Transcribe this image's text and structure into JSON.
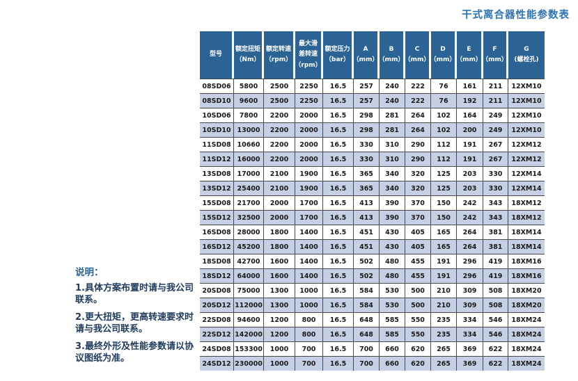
{
  "title": "干式离合器性能参数表",
  "colors": {
    "header_bg": "#2b6394",
    "shaded_row": "#c5d0e4",
    "row_border": "#474747",
    "title_blue": "#2e74b5",
    "notes_text": "#1e3a5c"
  },
  "table": {
    "columns": [
      {
        "label": "型号",
        "unit": ""
      },
      {
        "label": "额定扭矩",
        "unit": "（Nm）"
      },
      {
        "label": "额定转速",
        "unit": "（rpm）"
      },
      {
        "label": "最大滑差转速",
        "unit": "（rpm）"
      },
      {
        "label": "额定压力",
        "unit": "（bar）"
      },
      {
        "label": "A",
        "unit": "（mm）"
      },
      {
        "label": "B",
        "unit": "（mm）"
      },
      {
        "label": "C",
        "unit": "（mm）"
      },
      {
        "label": "D",
        "unit": "（mm）"
      },
      {
        "label": "E",
        "unit": "（mm）"
      },
      {
        "label": "F",
        "unit": "（mm）"
      },
      {
        "label": "G",
        "unit": "(螺栓孔)"
      }
    ],
    "rows": [
      [
        "08SD06",
        "5800",
        "2500",
        "2250",
        "16.5",
        "257",
        "240",
        "222",
        "76",
        "161",
        "211",
        "12XM10"
      ],
      [
        "08SD10",
        "9600",
        "2500",
        "2250",
        "16.5",
        "257",
        "240",
        "222",
        "76",
        "192",
        "211",
        "12XM10"
      ],
      [
        "10SD06",
        "7800",
        "2200",
        "2000",
        "16.5",
        "298",
        "281",
        "264",
        "102",
        "164",
        "249",
        "12XM10"
      ],
      [
        "10SD10",
        "13000",
        "2200",
        "2000",
        "16.5",
        "298",
        "281",
        "264",
        "102",
        "200",
        "249",
        "12XM10"
      ],
      [
        "11SD08",
        "10660",
        "2200",
        "2000",
        "16.5",
        "330",
        "310",
        "290",
        "112",
        "191",
        "267",
        "12XM12"
      ],
      [
        "11SD12",
        "16000",
        "2200",
        "2000",
        "16.5",
        "330",
        "310",
        "290",
        "112",
        "191",
        "267",
        "12XM12"
      ],
      [
        "13SD08",
        "17000",
        "2100",
        "1900",
        "16.5",
        "365",
        "340",
        "320",
        "125",
        "203",
        "330",
        "12XM14"
      ],
      [
        "13SD12",
        "25400",
        "2100",
        "1900",
        "16.5",
        "365",
        "340",
        "320",
        "125",
        "203",
        "330",
        "12XM14"
      ],
      [
        "15SD08",
        "21700",
        "2000",
        "1700",
        "16.5",
        "413",
        "390",
        "370",
        "150",
        "242",
        "343",
        "18XM12"
      ],
      [
        "15SD12",
        "32500",
        "2000",
        "1700",
        "16.5",
        "413",
        "390",
        "370",
        "150",
        "242",
        "343",
        "18XM12"
      ],
      [
        "16SD08",
        "28000",
        "1800",
        "1400",
        "16.5",
        "451",
        "430",
        "405",
        "165",
        "264",
        "381",
        "18XM14"
      ],
      [
        "16SD12",
        "45200",
        "1800",
        "1400",
        "16.5",
        "451",
        "430",
        "405",
        "165",
        "264",
        "381",
        "18XM14"
      ],
      [
        "18SD08",
        "42700",
        "1600",
        "1400",
        "16.5",
        "502",
        "480",
        "455",
        "191",
        "296",
        "419",
        "18XM16"
      ],
      [
        "18SD12",
        "64000",
        "1600",
        "1400",
        "16.5",
        "502",
        "480",
        "455",
        "191",
        "296",
        "419",
        "18XM16"
      ],
      [
        "20SD08",
        "75000",
        "1300",
        "1000",
        "16.5",
        "584",
        "530",
        "500",
        "210",
        "309",
        "508",
        "18XM20"
      ],
      [
        "20SD12",
        "112000",
        "1300",
        "1000",
        "16.5",
        "584",
        "530",
        "500",
        "210",
        "309",
        "508",
        "18XM20"
      ],
      [
        "22SD08",
        "94600",
        "1200",
        "800",
        "16.5",
        "648",
        "585",
        "550",
        "235",
        "334",
        "546",
        "18XM24"
      ],
      [
        "22SD12",
        "142000",
        "1200",
        "800",
        "16.5",
        "648",
        "585",
        "550",
        "235",
        "334",
        "546",
        "18XM24"
      ],
      [
        "24SD08",
        "153300",
        "1000",
        "700",
        "16.5",
        "700",
        "660",
        "620",
        "265",
        "369",
        "622",
        "18XM24"
      ],
      [
        "24SD12",
        "230000",
        "1000",
        "700",
        "16.5",
        "700",
        "660",
        "620",
        "265",
        "369",
        "622",
        "18XM24"
      ]
    ]
  },
  "notes": {
    "heading": "说明：",
    "items": [
      "1.具体方案布置时请与我公司联系。",
      "2.更大扭矩，更高转速要求时请与我公司联系。",
      "3.最终外形及性能参数请以协议图纸为准。"
    ]
  }
}
